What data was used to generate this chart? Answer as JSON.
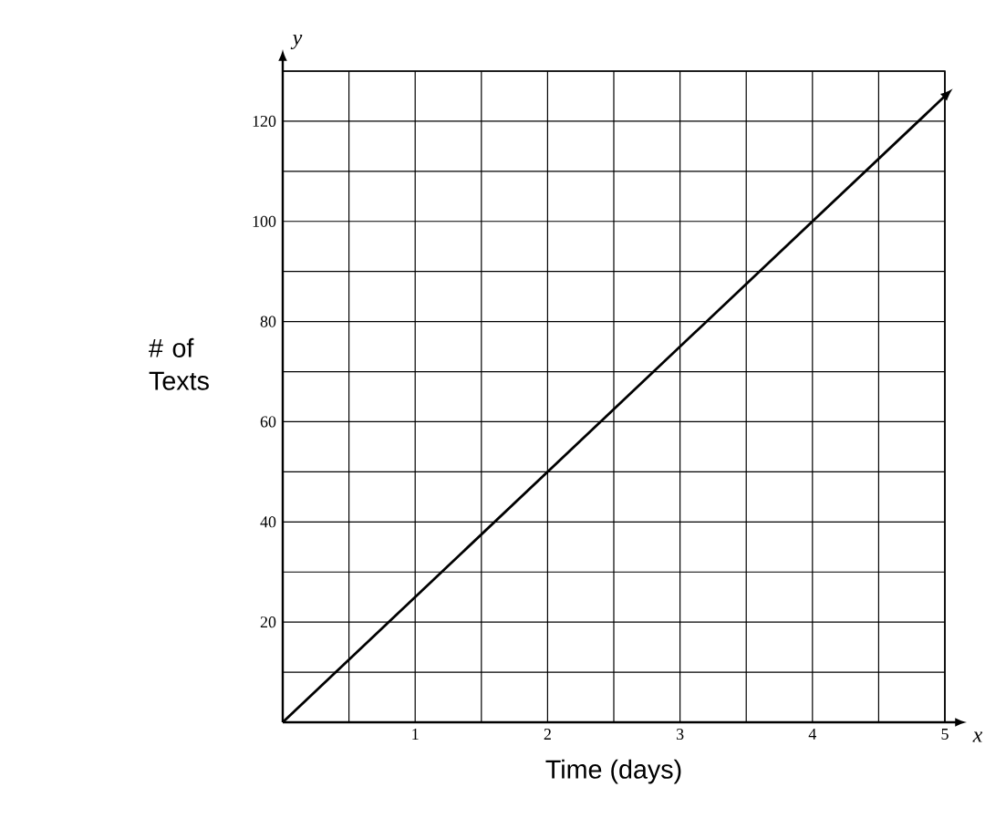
{
  "chart_data": {
    "type": "line",
    "xlabel": "Time (days)",
    "ylabel": "# of Texts",
    "annotations": [
      "y",
      "x"
    ],
    "x": [
      0,
      5
    ],
    "values": [
      0,
      125
    ],
    "color": "#000000",
    "marker": "none",
    "line_style": "solid",
    "xlim": [
      0,
      5
    ],
    "ylim": [
      0,
      130
    ],
    "xticks": [
      {
        "value": 0.5,
        "label": null
      },
      1,
      {
        "value": 1.5,
        "label": null
      },
      2,
      {
        "value": 2.5,
        "label": null
      },
      3,
      {
        "value": 3.5,
        "label": null
      },
      4,
      {
        "value": 4.5,
        "label": null
      },
      5
    ],
    "yticks": [
      {
        "value": 10,
        "label": null
      },
      20,
      {
        "value": 30,
        "label": null
      },
      40,
      {
        "value": 50,
        "label": null
      },
      60,
      {
        "value": 70,
        "label": null
      },
      80,
      {
        "value": 90,
        "label": null
      },
      100,
      {
        "value": 110,
        "label": null
      },
      120,
      {
        "value": 130,
        "label": null
      }
    ],
    "grid": true
  }
}
